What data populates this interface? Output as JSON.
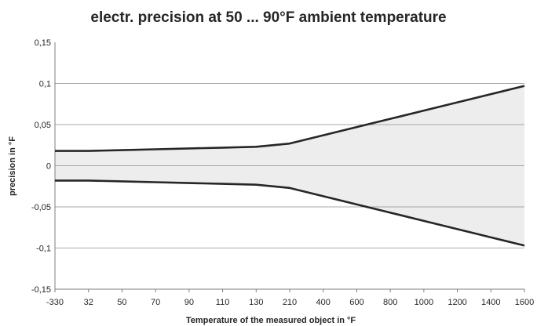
{
  "chart_data": {
    "type": "area",
    "title": "electr. precision at 50 ... 90°F ambient temperature",
    "xlabel": "Temperature of the measured object in °F",
    "ylabel": "precision in °F",
    "categories": [
      "-330",
      "32",
      "50",
      "70",
      "90",
      "110",
      "130",
      "210",
      "400",
      "600",
      "800",
      "1000",
      "1200",
      "1400",
      "1600"
    ],
    "y_ticks": [
      "0,15",
      "0,1",
      "0,05",
      "0",
      "-0,05",
      "-0,1",
      "-0,15"
    ],
    "ylim": [
      -0.15,
      0.15
    ],
    "grid": true,
    "series": [
      {
        "values": [
          0.018,
          0.018,
          0.019,
          0.02,
          0.021,
          0.022,
          0.023,
          0.027,
          0.037,
          0.047,
          0.057,
          0.067,
          0.077,
          0.087,
          0.097
        ]
      },
      {
        "values": [
          -0.018,
          -0.018,
          -0.019,
          -0.02,
          -0.021,
          -0.022,
          -0.023,
          -0.027,
          -0.037,
          -0.047,
          -0.057,
          -0.067,
          -0.077,
          -0.087,
          -0.097
        ]
      }
    ],
    "colors": {
      "line": "#262626",
      "fill": "#ededed",
      "grid": "#8c8c8c",
      "axis": "#7f7f7f"
    }
  }
}
